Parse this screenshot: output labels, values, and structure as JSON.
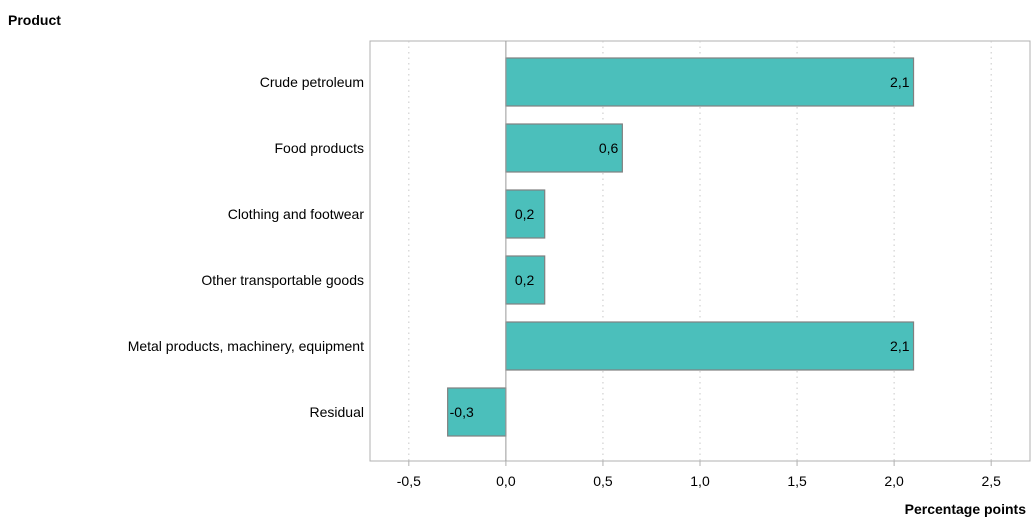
{
  "chart_data": {
    "type": "bar",
    "orientation": "horizontal",
    "ylabel": "Product",
    "xlabel": "Percentage points",
    "categories": [
      "Crude petroleum",
      "Food products",
      "Clothing and footwear",
      "Other transportable goods",
      "Metal products, machinery, equipment",
      "Residual"
    ],
    "values": [
      2.1,
      0.6,
      0.2,
      0.2,
      2.1,
      -0.3
    ],
    "data_labels": [
      "2,1",
      "0,6",
      "0,2",
      "0,2",
      "2,1",
      "-0,3"
    ],
    "xlim": [
      -0.7,
      2.7
    ],
    "xticks": [
      -0.5,
      0.0,
      0.5,
      1.0,
      1.5,
      2.0,
      2.5
    ],
    "xtick_labels": [
      "-0,5",
      "0,0",
      "0,5",
      "1,0",
      "1,5",
      "2,0",
      "2,5"
    ],
    "grid": "vertical dotted",
    "bar_color": "#4bbfbb",
    "bar_edge_color": "#808080"
  }
}
